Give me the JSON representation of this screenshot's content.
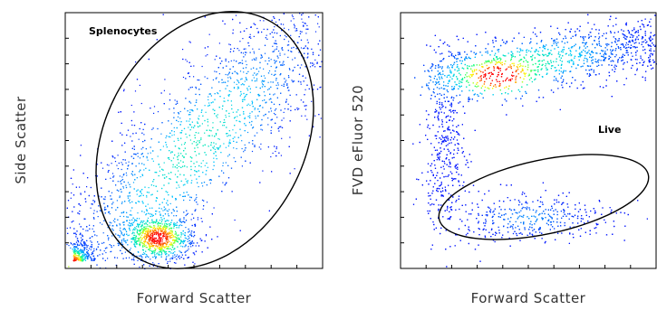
{
  "chart_data": [
    {
      "type": "scatter",
      "subtype": "flow-cytometry density dot plot",
      "title": "",
      "xlabel": "Forward Scatter",
      "ylabel": "Side Scatter",
      "xlim": [
        0,
        1
      ],
      "ylim": [
        0,
        1
      ],
      "tick_labels": "none",
      "grid": false,
      "legend": "none",
      "colormap": [
        "#0000ff",
        "#00c8ff",
        "#00ff80",
        "#ffff00",
        "#ff8000",
        "#ff0000"
      ],
      "populations": [
        {
          "name": "main cluster",
          "x": 0.35,
          "y": 0.12,
          "density": "high"
        },
        {
          "name": "debris corner",
          "x": 0.03,
          "y": 0.03,
          "density": "medium"
        },
        {
          "name": "diagonal spread",
          "from": [
            0.05,
            0.05
          ],
          "to": [
            0.95,
            0.95
          ],
          "density": "low"
        }
      ],
      "gate": {
        "label": "Splenocytes",
        "shape": "ellipse",
        "center": [
          0.55,
          0.48
        ],
        "extent": [
          0.34,
          0.52
        ],
        "rotation_deg": 35
      }
    },
    {
      "type": "scatter",
      "subtype": "flow-cytometry density dot plot",
      "title": "",
      "xlabel": "Forward Scatter",
      "ylabel": "FVD eFluor 520",
      "xlim": [
        0,
        1
      ],
      "ylim": [
        0,
        1
      ],
      "tick_labels": "none",
      "grid": false,
      "legend": "none",
      "colormap": [
        "#0000ff",
        "#00c8ff",
        "#00ff80",
        "#ffff00",
        "#ff8000",
        "#ff0000"
      ],
      "populations": [
        {
          "name": "dead/bright band",
          "x": 0.35,
          "y": 0.75,
          "density": "high"
        },
        {
          "name": "live population",
          "x": 0.5,
          "y": 0.2,
          "density": "low"
        }
      ],
      "gate": {
        "label": "Live",
        "shape": "ellipse",
        "center": [
          0.5,
          0.2
        ],
        "extent": [
          0.38,
          0.13
        ],
        "rotation_deg": -12
      }
    }
  ]
}
